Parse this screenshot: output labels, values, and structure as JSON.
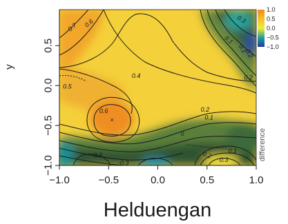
{
  "chart_data": {
    "type": "heatmap",
    "title": "Helduengan",
    "xlabel": "",
    "ylabel": "y",
    "xlim": [
      -1.0,
      1.0
    ],
    "ylim": [
      -1.0,
      0.95
    ],
    "x_ticks": [
      "−1.0",
      "−0.5",
      "0.0",
      "0.5",
      "1.0"
    ],
    "x_tick_values": [
      -1.0,
      -0.5,
      0.0,
      0.5,
      1.0
    ],
    "y_ticks": [
      "−1.0",
      "−0.5",
      "0.0",
      "0.5"
    ],
    "y_tick_values": [
      -1.0,
      -0.5,
      0.0,
      0.5
    ],
    "colorbar": {
      "label": "difference",
      "ticks": [
        "1.0",
        "0.5",
        "0.0",
        "−0.5",
        "−1.0"
      ],
      "tick_values": [
        1.0,
        0.5,
        0.0,
        -0.5,
        -1.0
      ],
      "range": [
        -1.0,
        1.0
      ],
      "colors": [
        "#f08a1c",
        "#f5c02a",
        "#f2ec3a",
        "#1fa09a",
        "#2238a0"
      ]
    },
    "contour_levels": [
      -0.3,
      -0.2,
      -0.1,
      0,
      0.1,
      0.2,
      0.3,
      0.4,
      0.5,
      0.6,
      0.7
    ],
    "contour_labels": [
      {
        "text": "0.7",
        "x": -0.87,
        "y": 0.73,
        "rotate": -40
      },
      {
        "text": "0.6",
        "x": -0.7,
        "y": 0.78,
        "rotate": -40
      },
      {
        "text": "0.4",
        "x": -0.22,
        "y": 0.12,
        "rotate": 0
      },
      {
        "text": "0.5",
        "x": -0.92,
        "y": -0.01,
        "rotate": 0
      },
      {
        "text": "0.6",
        "x": -0.55,
        "y": -0.32,
        "rotate": 0
      },
      {
        "text": "0.3",
        "x": 0.85,
        "y": 0.83,
        "rotate": 35
      },
      {
        "text": "0.1",
        "x": 0.86,
        "y": 0.46,
        "rotate": 60
      },
      {
        "text": "0.2",
        "x": 0.93,
        "y": 0.4,
        "rotate": 60
      },
      {
        "text": "0.2",
        "x": 0.92,
        "y": 0.1,
        "rotate": 0
      },
      {
        "text": "0.1",
        "x": 0.72,
        "y": 0.57,
        "rotate": 40
      },
      {
        "text": "0.2",
        "x": 0.48,
        "y": -0.3,
        "rotate": 0
      },
      {
        "text": "0.1",
        "x": 0.52,
        "y": -0.4,
        "rotate": 0
      },
      {
        "text": "0",
        "x": 0.25,
        "y": -0.6,
        "rotate": -20
      },
      {
        "text": "0.2",
        "x": 0.5,
        "y": -0.87,
        "rotate": 20
      },
      {
        "text": "0.1",
        "x": 0.76,
        "y": -0.82,
        "rotate": 0
      },
      {
        "text": "0.3",
        "x": 0.67,
        "y": -0.93,
        "rotate": 0
      },
      {
        "text": "-0.3",
        "x": -0.62,
        "y": -0.87,
        "rotate": 0
      },
      {
        "text": "-0.3",
        "x": -0.35,
        "y": -0.97,
        "rotate": 0
      }
    ]
  }
}
